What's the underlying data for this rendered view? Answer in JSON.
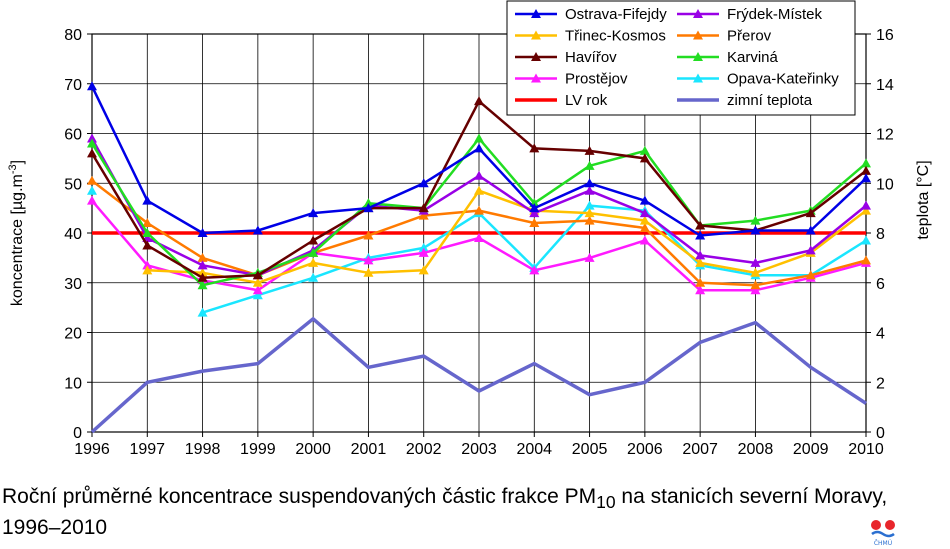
{
  "caption": {
    "text_pre": "Roční průměrné koncentrace suspendovaných částic frakce PM",
    "text_sub": "10",
    "text_post": " na stanicích severní Moravy, 1996–2010"
  },
  "logo": {
    "text": "ČHMÚ"
  },
  "chart_data": {
    "type": "line",
    "x": [
      1996,
      1997,
      1998,
      1999,
      2000,
      2001,
      2002,
      2003,
      2004,
      2005,
      2006,
      2007,
      2008,
      2009,
      2010
    ],
    "ylabel": "koncentrace [µg.m",
    "ylabel_sup": "-3",
    "ylabel_post": "]",
    "y2label": "teplota [°C]",
    "ylim": [
      0,
      80
    ],
    "y2lim": [
      0,
      16
    ],
    "yticks": [
      0,
      10,
      20,
      30,
      40,
      50,
      60,
      70,
      80
    ],
    "y2ticks": [
      0,
      2,
      4,
      6,
      8,
      10,
      12,
      14,
      16
    ],
    "legend_position": "top-right",
    "series": [
      {
        "name": "Ostrava-Fifejdy",
        "color": "#0000e6",
        "marker": "triangle",
        "axis": "left",
        "values": [
          69.5,
          46.5,
          40,
          40.5,
          44,
          45,
          50,
          57,
          45,
          50,
          46.5,
          39.5,
          40.5,
          40.5,
          51
        ]
      },
      {
        "name": "Frýdek-Místek",
        "color": "#9900e6",
        "marker": "triangle",
        "axis": "left",
        "values": [
          59,
          39,
          33.5,
          31.5,
          36.5,
          45.5,
          44.5,
          51.5,
          44,
          48.5,
          44,
          35.5,
          34,
          36.5,
          45.5
        ]
      },
      {
        "name": "Třinec-Kosmos",
        "color": "#ffc000",
        "marker": "triangle",
        "axis": "left",
        "values": [
          null,
          32.5,
          32,
          30,
          34,
          32,
          32.5,
          48.5,
          44.5,
          44,
          42.5,
          34,
          32,
          36,
          44.5
        ]
      },
      {
        "name": "Přerov",
        "color": "#ff7a00",
        "marker": "triangle",
        "axis": "left",
        "values": [
          50.5,
          42,
          35,
          31.5,
          36,
          39.5,
          43.5,
          44.5,
          42,
          42.5,
          41,
          30,
          29.5,
          31.5,
          34.5
        ]
      },
      {
        "name": "Havířov",
        "color": "#660000",
        "marker": "triangle",
        "axis": "left",
        "values": [
          56,
          37.5,
          31,
          31.5,
          38.5,
          45,
          45,
          66.5,
          57,
          56.5,
          55,
          41.5,
          40.5,
          44,
          52.5
        ]
      },
      {
        "name": "Karviná",
        "color": "#22dd22",
        "marker": "triangle",
        "axis": "left",
        "values": [
          58,
          40,
          29.5,
          32,
          36,
          46,
          45,
          59,
          46,
          53.5,
          56.5,
          41.5,
          42.5,
          44.5,
          54
        ]
      },
      {
        "name": "Prostějov",
        "color": "#ff1aff",
        "marker": "triangle",
        "axis": "left",
        "values": [
          46.5,
          33.5,
          30.5,
          28.5,
          36,
          34.5,
          36,
          39,
          32.5,
          35,
          38.5,
          28.5,
          28.5,
          31,
          34
        ]
      },
      {
        "name": "Opava-Kateřinky",
        "color": "#1ae6ff",
        "marker": "triangle",
        "axis": "left",
        "values": [
          48.5,
          null,
          24,
          27.5,
          31,
          35,
          37,
          44,
          33,
          45.5,
          44.5,
          33.5,
          31.5,
          31.5,
          38.5
        ]
      },
      {
        "name": "LV rok",
        "color": "#ff0000",
        "marker": "none",
        "axis": "left",
        "values": [
          40,
          40,
          40,
          40,
          40,
          40,
          40,
          40,
          40,
          40,
          40,
          40,
          40,
          40,
          40
        ]
      },
      {
        "name": "zimní teplota",
        "color": "#6666cc",
        "marker": "none",
        "axis": "right",
        "values": [
          0,
          2,
          2.45,
          2.75,
          4.55,
          2.6,
          3.05,
          1.65,
          2.75,
          1.5,
          2,
          3.6,
          4.4,
          2.6,
          1.15
        ]
      }
    ]
  }
}
